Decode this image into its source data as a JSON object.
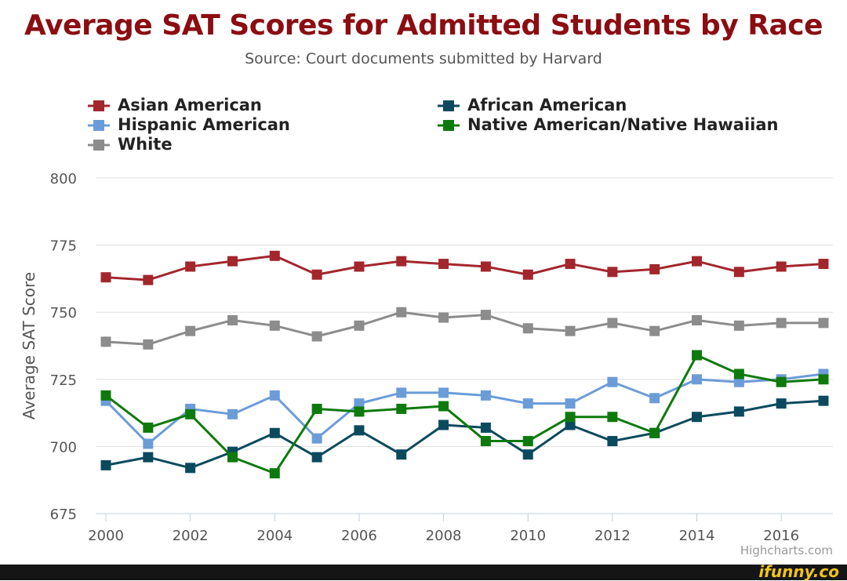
{
  "header": {
    "title": "Average SAT Scores for Admitted Students by Race",
    "subtitle": "Source: Court documents submitted by Harvard"
  },
  "credits": "Highcharts.com",
  "watermark": "ifunny.co",
  "chart_data": {
    "type": "line",
    "title": "Average SAT Scores for Admitted Students by Race",
    "subtitle": "Source: Court documents submitted by Harvard",
    "xlabel": "",
    "ylabel": "Average SAT Score",
    "x": [
      2000,
      2001,
      2002,
      2003,
      2004,
      2005,
      2006,
      2007,
      2008,
      2009,
      2010,
      2011,
      2012,
      2013,
      2014,
      2015,
      2016,
      2017
    ],
    "xlim": [
      2000,
      2017
    ],
    "ylim": [
      675,
      800
    ],
    "x_ticks": [
      2000,
      2002,
      2004,
      2006,
      2008,
      2010,
      2012,
      2014,
      2016
    ],
    "y_ticks": [
      675,
      700,
      725,
      750,
      775,
      800
    ],
    "grid": true,
    "legend_position": "top",
    "series": [
      {
        "name": "Asian American",
        "color": "#a3262d",
        "values": [
          763,
          762,
          767,
          769,
          771,
          764,
          767,
          769,
          768,
          767,
          764,
          768,
          765,
          766,
          769,
          765,
          767,
          768
        ]
      },
      {
        "name": "African American",
        "color": "#0b4a5e",
        "values": [
          693,
          696,
          692,
          698,
          705,
          696,
          706,
          697,
          708,
          707,
          697,
          708,
          702,
          705,
          711,
          713,
          716,
          717
        ]
      },
      {
        "name": "Hispanic American",
        "color": "#6b9cd8",
        "values": [
          717,
          701,
          714,
          712,
          719,
          703,
          716,
          720,
          720,
          719,
          716,
          716,
          724,
          718,
          725,
          724,
          725,
          727
        ]
      },
      {
        "name": "Native American/Native Hawaiian",
        "color": "#0e7a0d",
        "values": [
          719,
          707,
          712,
          696,
          690,
          714,
          713,
          714,
          715,
          702,
          702,
          711,
          711,
          705,
          734,
          727,
          724,
          725
        ]
      },
      {
        "name": "White",
        "color": "#8c8c8c",
        "values": [
          739,
          738,
          743,
          747,
          745,
          741,
          745,
          750,
          748,
          749,
          744,
          743,
          746,
          743,
          747,
          745,
          746,
          746
        ]
      }
    ]
  }
}
